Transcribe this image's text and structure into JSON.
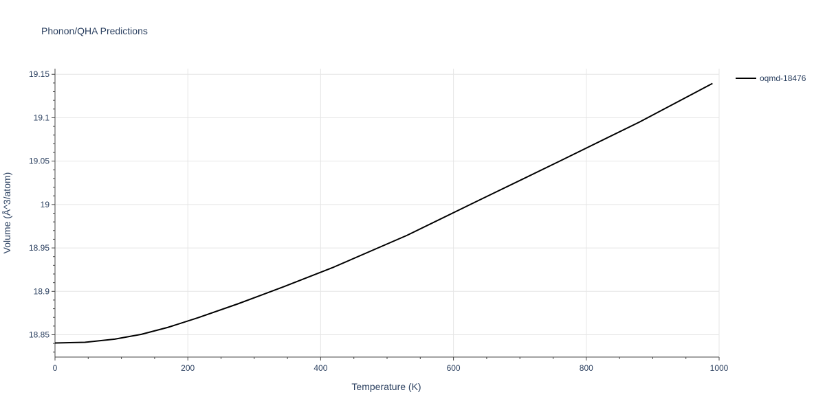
{
  "chart_data": {
    "type": "line",
    "title": "Phonon/QHA Predictions",
    "xlabel": "Temperature (K)",
    "ylabel": "Volume (Å^3/atom)",
    "xlim": [
      0,
      1000
    ],
    "ylim": [
      18.8243,
      19.1565
    ],
    "x_ticks": [
      0,
      200,
      400,
      600,
      800,
      1000
    ],
    "y_ticks": [
      18.85,
      18.9,
      18.95,
      19,
      19.05,
      19.1,
      19.15
    ],
    "x_tick_labels": [
      "0",
      "200",
      "400",
      "600",
      "800",
      "1000"
    ],
    "y_tick_labels": [
      "18.85",
      "18.9",
      "18.95",
      "19",
      "19.05",
      "19.1",
      "19.15"
    ],
    "grid": true,
    "legend_position": "top-right",
    "series": [
      {
        "name": "oqmd-18476",
        "color": "#000000",
        "x": [
          0,
          45,
          90,
          130,
          170,
          215,
          275,
          345,
          420,
          530,
          640,
          760,
          880,
          990
        ],
        "y": [
          18.8405,
          18.8413,
          18.845,
          18.8505,
          18.8585,
          18.8695,
          18.8855,
          18.9055,
          18.928,
          18.9645,
          19.0055,
          19.05,
          19.095,
          19.1395
        ]
      }
    ]
  }
}
